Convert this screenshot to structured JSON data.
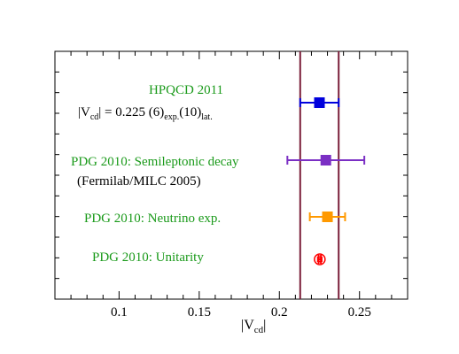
{
  "chart_data": {
    "type": "scatter",
    "title": "",
    "xlabel_main": "|V",
    "xlabel_sub": "cd",
    "xlabel_close": "|",
    "xlim": [
      0.06,
      0.28
    ],
    "x_ticks": [
      {
        "value": 0.1,
        "label": "0.1"
      },
      {
        "value": 0.15,
        "label": "0.15"
      },
      {
        "value": 0.2,
        "label": "0.2"
      },
      {
        "value": 0.25,
        "label": "0.25"
      }
    ],
    "x_minor_step": 0.01,
    "y_minor_ticks": 12,
    "band": {
      "lower": 0.213,
      "upper": 0.237,
      "color": "#7b1f3a"
    },
    "series": [
      {
        "label": "HPQCD 2011",
        "value": 0.225,
        "err_lo": 0.012,
        "err_hi": 0.012,
        "color": "#0000dd",
        "marker": "square"
      },
      {
        "label": "PDG 2010: Semileptonic decay",
        "value": 0.229,
        "err_lo": 0.024,
        "err_hi": 0.024,
        "color": "#7b2fc4",
        "marker": "square"
      },
      {
        "label": "PDG 2010: Neutrino exp.",
        "value": 0.23,
        "err_lo": 0.011,
        "err_hi": 0.011,
        "color": "#ff9900",
        "marker": "square"
      },
      {
        "label": "PDG 2010: Unitarity",
        "value": 0.2252,
        "err_lo": 0.0007,
        "err_hi": 0.0007,
        "color": "#ff0000",
        "marker": "circled-square"
      }
    ],
    "annotations": {
      "hpqcd_formula": {
        "prefix": "|V",
        "sub1": "cd",
        "mid": "| = 0.225 (6)",
        "sub2": "exp.",
        "mid2": "(10)",
        "sub3": "lat."
      },
      "fermilab_note": "(Fermilab/MILC 2005)"
    },
    "colors": {
      "label_green": "#1a9a1a",
      "axis": "#000000"
    }
  }
}
